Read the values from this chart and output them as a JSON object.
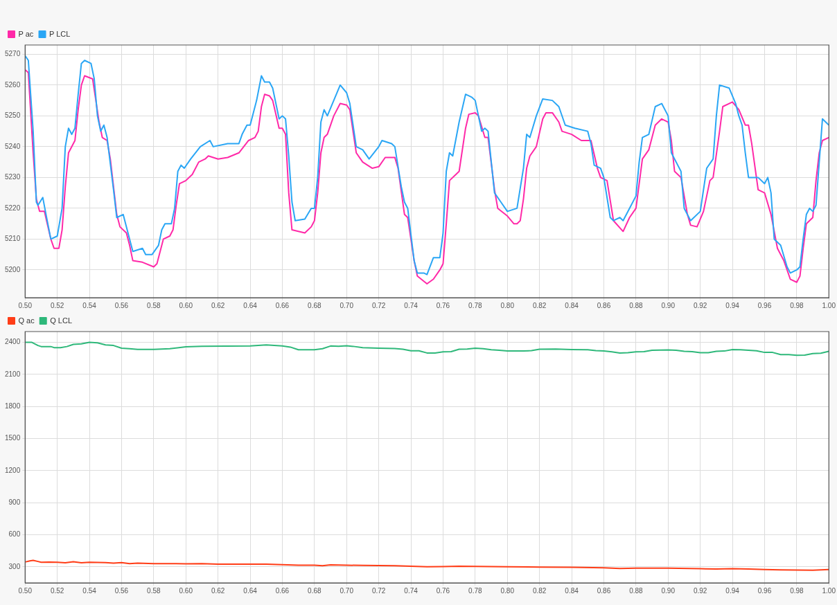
{
  "chart_data": [
    {
      "type": "line",
      "legend": "top left",
      "grid": true,
      "marker": "none",
      "line_style": "solid",
      "xlim": [
        0.5,
        1.0
      ],
      "xticks": [
        {
          "value": 0.5,
          "label": "0.50"
        },
        {
          "value": 0.52,
          "label": "0.52"
        },
        {
          "value": 0.54,
          "label": "0.54"
        },
        {
          "value": 0.56,
          "label": "0.56"
        },
        {
          "value": 0.58,
          "label": "0.58"
        },
        {
          "value": 0.6,
          "label": "0.60"
        },
        {
          "value": 0.62,
          "label": "0.62"
        },
        {
          "value": 0.64,
          "label": "0.64"
        },
        {
          "value": 0.66,
          "label": "0.66"
        },
        {
          "value": 0.68,
          "label": "0.68"
        },
        {
          "value": 0.7,
          "label": "0.70"
        },
        {
          "value": 0.72,
          "label": "0.72"
        },
        {
          "value": 0.74,
          "label": "0.74"
        },
        {
          "value": 0.76,
          "label": "0.76"
        },
        {
          "value": 0.78,
          "label": "0.78"
        },
        {
          "value": 0.8,
          "label": "0.80"
        },
        {
          "value": 0.82,
          "label": "0.82"
        },
        {
          "value": 0.84,
          "label": "0.84"
        },
        {
          "value": 0.86,
          "label": "0.86"
        },
        {
          "value": 0.88,
          "label": "0.88"
        },
        {
          "value": 0.9,
          "label": "0.90"
        },
        {
          "value": 0.92,
          "label": "0.92"
        },
        {
          "value": 0.94,
          "label": "0.94"
        },
        {
          "value": 0.96,
          "label": "0.96"
        },
        {
          "value": 0.98,
          "label": "0.98"
        },
        {
          "value": 1.0,
          "label": "1.00"
        }
      ],
      "ylim": [
        5191,
        5273
      ],
      "yticks": [
        5200,
        5210,
        5220,
        5230,
        5240,
        5250,
        5260,
        5270
      ],
      "series": [
        {
          "name": "P ac",
          "color": "#ff29a8",
          "x": [
            0.5,
            0.502,
            0.505,
            0.507,
            0.509,
            0.512,
            0.516,
            0.518,
            0.521,
            0.523,
            0.525,
            0.527,
            0.531,
            0.533,
            0.535,
            0.537,
            0.542,
            0.544,
            0.546,
            0.548,
            0.551,
            0.553,
            0.557,
            0.559,
            0.563,
            0.565,
            0.567,
            0.573,
            0.58,
            0.582,
            0.584,
            0.586,
            0.59,
            0.592,
            0.594,
            0.596,
            0.6,
            0.604,
            0.608,
            0.612,
            0.614,
            0.62,
            0.626,
            0.633,
            0.636,
            0.639,
            0.643,
            0.645,
            0.647,
            0.649,
            0.652,
            0.654,
            0.658,
            0.66,
            0.662,
            0.664,
            0.666,
            0.67,
            0.674,
            0.678,
            0.68,
            0.682,
            0.684,
            0.686,
            0.688,
            0.692,
            0.696,
            0.7,
            0.702,
            0.704,
            0.706,
            0.71,
            0.716,
            0.72,
            0.724,
            0.73,
            0.732,
            0.736,
            0.738,
            0.742,
            0.744,
            0.75,
            0.754,
            0.758,
            0.76,
            0.762,
            0.764,
            0.768,
            0.77,
            0.774,
            0.776,
            0.78,
            0.782,
            0.786,
            0.788,
            0.792,
            0.794,
            0.8,
            0.804,
            0.806,
            0.808,
            0.81,
            0.812,
            0.814,
            0.818,
            0.822,
            0.824,
            0.828,
            0.832,
            0.834,
            0.84,
            0.846,
            0.852,
            0.856,
            0.858,
            0.862,
            0.866,
            0.872,
            0.876,
            0.88,
            0.884,
            0.888,
            0.892,
            0.896,
            0.9,
            0.902,
            0.904,
            0.908,
            0.912,
            0.914,
            0.918,
            0.922,
            0.926,
            0.928,
            0.932,
            0.934,
            0.94,
            0.944,
            0.948,
            0.95,
            0.952,
            0.956,
            0.96,
            0.964,
            0.968,
            0.972,
            0.976,
            0.98,
            0.982,
            0.984,
            0.986,
            0.99,
            0.992,
            0.994,
            0.996,
            1.0
          ],
          "values": [
            5265,
            5264,
            5238,
            5223,
            5219,
            5219,
            5210,
            5207,
            5207,
            5213,
            5227,
            5238,
            5242,
            5252,
            5260,
            5263,
            5262,
            5255,
            5248,
            5243,
            5242,
            5236,
            5218,
            5214,
            5212,
            5208,
            5203,
            5202.5,
            5201,
            5202,
            5206,
            5210,
            5211,
            5213,
            5221,
            5228,
            5229,
            5231,
            5235,
            5236,
            5237,
            5236,
            5236.5,
            5238,
            5240,
            5242,
            5243,
            5245,
            5253,
            5257,
            5256.5,
            5255,
            5246,
            5246,
            5244,
            5225,
            5213,
            5212.5,
            5212,
            5214,
            5216,
            5225,
            5238,
            5243,
            5244,
            5250,
            5254,
            5253.5,
            5252,
            5245,
            5238,
            5235,
            5233,
            5233.5,
            5236.5,
            5236.5,
            5233,
            5218,
            5217,
            5203,
            5198,
            5195.5,
            5197,
            5200,
            5202,
            5215,
            5229,
            5231,
            5232,
            5246,
            5250.5,
            5251,
            5250,
            5243,
            5243,
            5226,
            5220,
            5217.5,
            5215,
            5215,
            5216,
            5223,
            5233,
            5237,
            5240,
            5249,
            5251,
            5251,
            5248,
            5245,
            5244,
            5242,
            5242,
            5233,
            5230,
            5229,
            5216,
            5212.5,
            5217,
            5220,
            5236,
            5239,
            5247,
            5249,
            5248,
            5242,
            5232,
            5230,
            5218,
            5214.5,
            5214,
            5219,
            5229,
            5230,
            5245,
            5253,
            5254.5,
            5252,
            5247,
            5247,
            5241,
            5226,
            5225,
            5218,
            5207,
            5203,
            5197,
            5196,
            5198,
            5207,
            5215,
            5217,
            5229,
            5238,
            5242,
            5243
          ]
        },
        {
          "name": "P LCL",
          "color": "#2aa6f5",
          "x": [
            0.5,
            0.502,
            0.505,
            0.507,
            0.508,
            0.511,
            0.513,
            0.516,
            0.52,
            0.523,
            0.525,
            0.527,
            0.529,
            0.531,
            0.533,
            0.535,
            0.537,
            0.541,
            0.543,
            0.545,
            0.547,
            0.549,
            0.551,
            0.555,
            0.557,
            0.561,
            0.565,
            0.567,
            0.573,
            0.575,
            0.579,
            0.583,
            0.585,
            0.587,
            0.591,
            0.593,
            0.595,
            0.597,
            0.599,
            0.603,
            0.609,
            0.615,
            0.617,
            0.626,
            0.633,
            0.635,
            0.638,
            0.64,
            0.644,
            0.647,
            0.649,
            0.652,
            0.654,
            0.658,
            0.66,
            0.662,
            0.664,
            0.666,
            0.668,
            0.674,
            0.678,
            0.68,
            0.682,
            0.684,
            0.686,
            0.688,
            0.692,
            0.696,
            0.7,
            0.702,
            0.706,
            0.71,
            0.714,
            0.72,
            0.722,
            0.728,
            0.73,
            0.734,
            0.736,
            0.738,
            0.742,
            0.744,
            0.748,
            0.75,
            0.754,
            0.758,
            0.76,
            0.762,
            0.764,
            0.766,
            0.77,
            0.774,
            0.778,
            0.78,
            0.784,
            0.786,
            0.788,
            0.792,
            0.796,
            0.8,
            0.806,
            0.81,
            0.812,
            0.814,
            0.818,
            0.822,
            0.828,
            0.832,
            0.836,
            0.842,
            0.85,
            0.852,
            0.854,
            0.858,
            0.86,
            0.864,
            0.866,
            0.87,
            0.872,
            0.876,
            0.88,
            0.882,
            0.884,
            0.888,
            0.892,
            0.896,
            0.9,
            0.902,
            0.906,
            0.908,
            0.91,
            0.914,
            0.92,
            0.924,
            0.928,
            0.93,
            0.932,
            0.938,
            0.942,
            0.944,
            0.946,
            0.948,
            0.95,
            0.956,
            0.96,
            0.962,
            0.964,
            0.966,
            0.97,
            0.974,
            0.976,
            0.98,
            0.982,
            0.984,
            0.986,
            0.988,
            0.99,
            0.992,
            0.994,
            0.996,
            1.0
          ],
          "values": [
            5269.5,
            5268,
            5245,
            5222,
            5221,
            5223.5,
            5218,
            5210,
            5211,
            5220,
            5240,
            5246,
            5244,
            5246,
            5257,
            5267,
            5268,
            5267,
            5262,
            5250,
            5245,
            5247,
            5243,
            5226,
            5217,
            5218,
            5210,
            5206,
            5207,
            5205,
            5205,
            5208,
            5213,
            5215,
            5215,
            5220,
            5232,
            5234,
            5233,
            5236,
            5240,
            5242,
            5240,
            5241,
            5241,
            5244,
            5247,
            5247,
            5255,
            5263,
            5261,
            5261,
            5259,
            5249,
            5250,
            5249,
            5237,
            5222,
            5216,
            5216.5,
            5220,
            5220,
            5230,
            5248,
            5252,
            5250,
            5255,
            5260,
            5257.5,
            5254,
            5240,
            5239,
            5236,
            5240,
            5242,
            5241,
            5240,
            5227,
            5222,
            5220,
            5203,
            5199,
            5199,
            5198.5,
            5204,
            5204,
            5212,
            5232,
            5238,
            5237,
            5248,
            5257,
            5256,
            5255,
            5245,
            5246,
            5245,
            5225,
            5222,
            5219,
            5220,
            5233,
            5244,
            5243,
            5250,
            5255.5,
            5255,
            5253,
            5247,
            5246,
            5245,
            5241,
            5234,
            5233,
            5230,
            5217,
            5216,
            5217,
            5216,
            5220,
            5224,
            5235,
            5243,
            5244,
            5253,
            5254,
            5250,
            5238,
            5234,
            5232,
            5220,
            5216,
            5219,
            5233,
            5236,
            5250,
            5260,
            5259,
            5254,
            5250,
            5247,
            5238,
            5230,
            5230,
            5228,
            5230,
            5225,
            5210,
            5208,
            5201,
            5199,
            5200,
            5201,
            5210,
            5218,
            5220,
            5219,
            5221,
            5235,
            5249,
            5247
          ]
        }
      ]
    },
    {
      "type": "line",
      "legend": "top left",
      "grid": true,
      "marker": "none",
      "line_style": "solid",
      "xlim": [
        0.5,
        1.0
      ],
      "xticks": [
        {
          "value": 0.5,
          "label": "0.50"
        },
        {
          "value": 0.52,
          "label": "0.52"
        },
        {
          "value": 0.54,
          "label": "0.54"
        },
        {
          "value": 0.56,
          "label": "0.56"
        },
        {
          "value": 0.58,
          "label": "0.58"
        },
        {
          "value": 0.6,
          "label": "0.60"
        },
        {
          "value": 0.62,
          "label": "0.62"
        },
        {
          "value": 0.64,
          "label": "0.64"
        },
        {
          "value": 0.66,
          "label": "0.66"
        },
        {
          "value": 0.68,
          "label": "0.68"
        },
        {
          "value": 0.7,
          "label": "0.70"
        },
        {
          "value": 0.72,
          "label": "0.72"
        },
        {
          "value": 0.74,
          "label": "0.74"
        },
        {
          "value": 0.76,
          "label": "0.76"
        },
        {
          "value": 0.78,
          "label": "0.78"
        },
        {
          "value": 0.8,
          "label": "0.80"
        },
        {
          "value": 0.82,
          "label": "0.82"
        },
        {
          "value": 0.84,
          "label": "0.84"
        },
        {
          "value": 0.86,
          "label": "0.86"
        },
        {
          "value": 0.88,
          "label": "0.88"
        },
        {
          "value": 0.9,
          "label": "0.90"
        },
        {
          "value": 0.92,
          "label": "0.92"
        },
        {
          "value": 0.94,
          "label": "0.94"
        },
        {
          "value": 0.96,
          "label": "0.96"
        },
        {
          "value": 0.98,
          "label": "0.98"
        },
        {
          "value": 1.0,
          "label": "1.00"
        }
      ],
      "ylim": [
        150,
        2500
      ],
      "yticks": [
        300,
        600,
        900,
        1200,
        1500,
        1800,
        2100,
        2400
      ],
      "series": [
        {
          "name": "Q ac",
          "color": "#ff3d17",
          "x": [
            0.5,
            0.503,
            0.505,
            0.508,
            0.51,
            0.515,
            0.52,
            0.525,
            0.53,
            0.535,
            0.54,
            0.55,
            0.555,
            0.56,
            0.565,
            0.57,
            0.58,
            0.59,
            0.6,
            0.61,
            0.62,
            0.64,
            0.65,
            0.66,
            0.67,
            0.68,
            0.685,
            0.69,
            0.7,
            0.71,
            0.72,
            0.73,
            0.74,
            0.75,
            0.76,
            0.77,
            0.78,
            0.79,
            0.8,
            0.82,
            0.84,
            0.86,
            0.87,
            0.88,
            0.9,
            0.92,
            0.93,
            0.94,
            0.95,
            0.96,
            0.97,
            0.98,
            0.99,
            1.0
          ],
          "values": [
            345,
            355,
            360,
            350,
            343,
            345,
            342,
            337,
            347,
            337,
            342,
            340,
            335,
            340,
            330,
            335,
            330,
            330,
            328,
            330,
            325,
            325,
            325,
            320,
            315,
            315,
            310,
            318,
            315,
            313,
            312,
            310,
            305,
            300,
            302,
            305,
            303,
            302,
            300,
            298,
            295,
            290,
            285,
            287,
            287,
            282,
            280,
            282,
            280,
            275,
            272,
            270,
            268,
            275
          ]
        },
        {
          "name": "Q LCL",
          "color": "#2eb87a",
          "x": [
            0.5,
            0.504,
            0.508,
            0.51,
            0.516,
            0.518,
            0.522,
            0.526,
            0.53,
            0.535,
            0.54,
            0.545,
            0.55,
            0.555,
            0.56,
            0.565,
            0.57,
            0.58,
            0.59,
            0.6,
            0.61,
            0.64,
            0.65,
            0.66,
            0.665,
            0.67,
            0.68,
            0.685,
            0.69,
            0.695,
            0.7,
            0.705,
            0.71,
            0.72,
            0.73,
            0.735,
            0.74,
            0.745,
            0.75,
            0.755,
            0.76,
            0.765,
            0.77,
            0.775,
            0.78,
            0.785,
            0.79,
            0.795,
            0.8,
            0.81,
            0.815,
            0.82,
            0.83,
            0.84,
            0.85,
            0.855,
            0.86,
            0.865,
            0.87,
            0.875,
            0.88,
            0.885,
            0.89,
            0.9,
            0.905,
            0.91,
            0.915,
            0.92,
            0.925,
            0.93,
            0.935,
            0.94,
            0.945,
            0.95,
            0.955,
            0.96,
            0.965,
            0.97,
            0.975,
            0.98,
            0.985,
            0.99,
            0.995,
            1.0
          ],
          "values": [
            2400,
            2400,
            2370,
            2360,
            2360,
            2350,
            2350,
            2360,
            2380,
            2385,
            2400,
            2395,
            2375,
            2370,
            2345,
            2340,
            2333,
            2333,
            2340,
            2357,
            2362,
            2365,
            2375,
            2365,
            2355,
            2330,
            2330,
            2340,
            2365,
            2362,
            2368,
            2360,
            2350,
            2345,
            2342,
            2335,
            2320,
            2320,
            2300,
            2300,
            2310,
            2312,
            2335,
            2337,
            2345,
            2340,
            2330,
            2325,
            2318,
            2318,
            2322,
            2335,
            2337,
            2332,
            2330,
            2322,
            2318,
            2310,
            2300,
            2302,
            2310,
            2312,
            2325,
            2328,
            2325,
            2315,
            2312,
            2302,
            2302,
            2315,
            2318,
            2332,
            2330,
            2325,
            2320,
            2305,
            2305,
            2285,
            2285,
            2278,
            2280,
            2295,
            2298,
            2315
          ]
        }
      ]
    }
  ]
}
